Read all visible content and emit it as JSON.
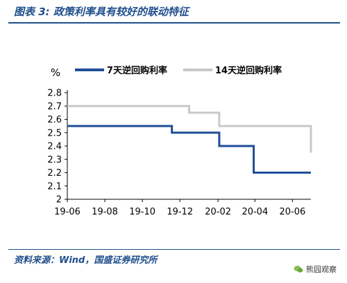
{
  "figure": {
    "title": "图表 3: 政策利率具有较好的联动特征",
    "source": "资料来源：Wind，国盛证券研究所",
    "watermark": "熊园观察"
  },
  "chart_data": {
    "type": "line",
    "step": true,
    "title": "",
    "xlabel": "",
    "ylabel": "%",
    "ylim": [
      2,
      2.8
    ],
    "yticks": [
      "2.8",
      "2.7",
      "2.6",
      "2.5",
      "2.4",
      "2.3",
      "2.2",
      "2.1",
      "2"
    ],
    "xlim": [
      "2019-06",
      "2020-07"
    ],
    "xticks": [
      "19-06",
      "19-08",
      "19-10",
      "19-12",
      "20-02",
      "20-04",
      "20-06"
    ],
    "grid": false,
    "legend_position": "top",
    "series": [
      {
        "name": "7天逆回购利率",
        "color": "#1f4e99",
        "points": [
          [
            "2019-06-01",
            2.55
          ],
          [
            "2019-11-18",
            2.5
          ],
          [
            "2020-02-03",
            2.4
          ],
          [
            "2020-03-30",
            2.2
          ],
          [
            "2020-07-01",
            2.2
          ]
        ]
      },
      {
        "name": "14天逆回购利率",
        "color": "#c8c8c8",
        "points": [
          [
            "2019-06-01",
            2.7
          ],
          [
            "2019-12-16",
            2.65
          ],
          [
            "2020-02-03",
            2.55
          ],
          [
            "2020-07-01",
            2.35
          ]
        ]
      }
    ]
  },
  "colors": {
    "brand": "#1f4e8c",
    "axis": "#000000"
  }
}
